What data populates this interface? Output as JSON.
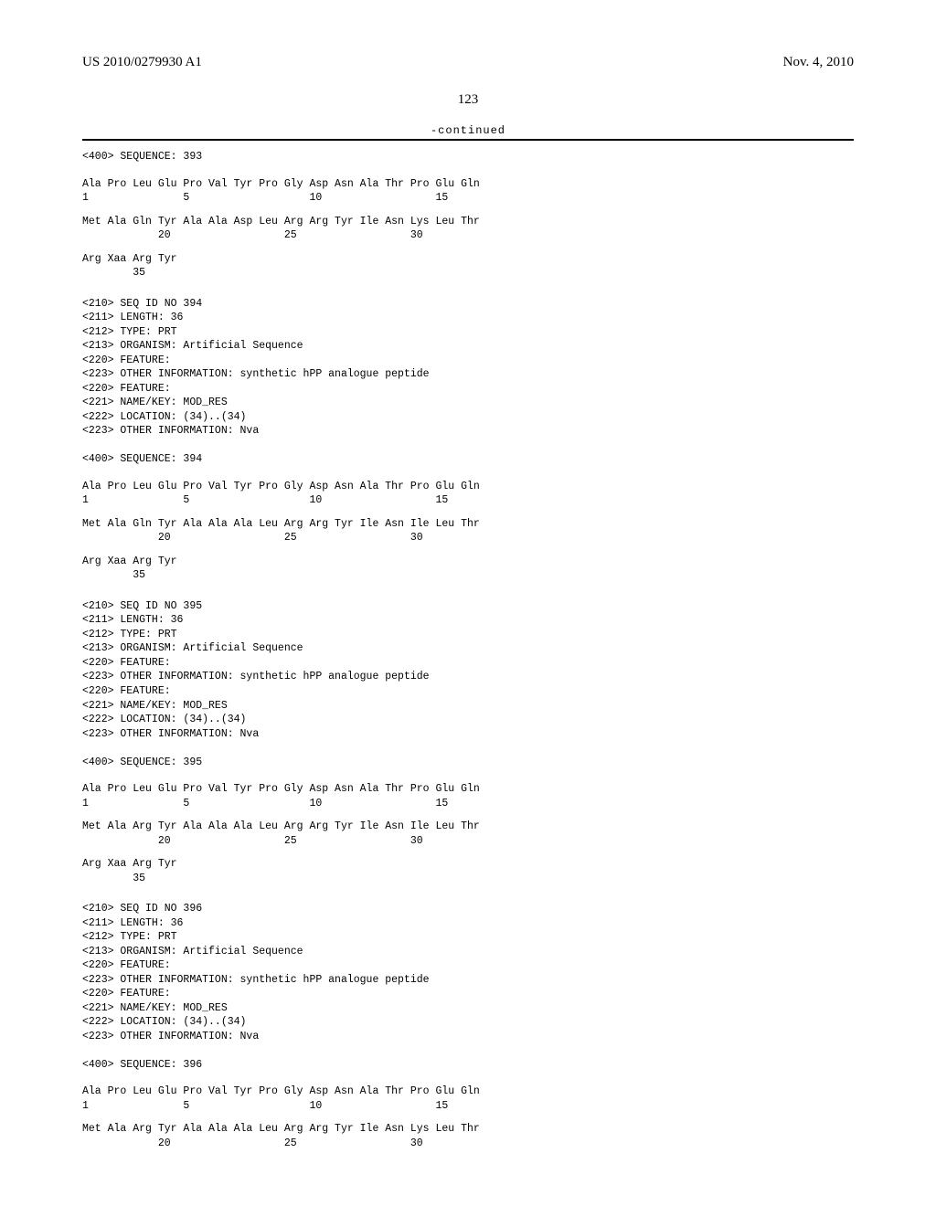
{
  "header": {
    "pub_number": "US 2010/0279930 A1",
    "date": "Nov. 4, 2010"
  },
  "page_number": "123",
  "continued_label": "-continued",
  "entries": [
    {
      "pre_lines": [
        "<400> SEQUENCE: 393"
      ],
      "sequence_rows": [
        {
          "res": "Ala Pro Leu Glu Pro Val Tyr Pro Gly Asp Asn Ala Thr Pro Glu Gln",
          "num": "1               5                   10                  15"
        },
        {
          "res": "Met Ala Gln Tyr Ala Ala Asp Leu Arg Arg Tyr Ile Asn Lys Leu Thr",
          "num": "            20                  25                  30"
        },
        {
          "res": "Arg Xaa Arg Tyr",
          "num": "        35"
        }
      ]
    },
    {
      "pre_lines": [
        "<210> SEQ ID NO 394",
        "<211> LENGTH: 36",
        "<212> TYPE: PRT",
        "<213> ORGANISM: Artificial Sequence",
        "<220> FEATURE:",
        "<223> OTHER INFORMATION: synthetic hPP analogue peptide",
        "<220> FEATURE:",
        "<221> NAME/KEY: MOD_RES",
        "<222> LOCATION: (34)..(34)",
        "<223> OTHER INFORMATION: Nva",
        "",
        "<400> SEQUENCE: 394"
      ],
      "sequence_rows": [
        {
          "res": "Ala Pro Leu Glu Pro Val Tyr Pro Gly Asp Asn Ala Thr Pro Glu Gln",
          "num": "1               5                   10                  15"
        },
        {
          "res": "Met Ala Gln Tyr Ala Ala Ala Leu Arg Arg Tyr Ile Asn Ile Leu Thr",
          "num": "            20                  25                  30"
        },
        {
          "res": "Arg Xaa Arg Tyr",
          "num": "        35"
        }
      ]
    },
    {
      "pre_lines": [
        "<210> SEQ ID NO 395",
        "<211> LENGTH: 36",
        "<212> TYPE: PRT",
        "<213> ORGANISM: Artificial Sequence",
        "<220> FEATURE:",
        "<223> OTHER INFORMATION: synthetic hPP analogue peptide",
        "<220> FEATURE:",
        "<221> NAME/KEY: MOD_RES",
        "<222> LOCATION: (34)..(34)",
        "<223> OTHER INFORMATION: Nva",
        "",
        "<400> SEQUENCE: 395"
      ],
      "sequence_rows": [
        {
          "res": "Ala Pro Leu Glu Pro Val Tyr Pro Gly Asp Asn Ala Thr Pro Glu Gln",
          "num": "1               5                   10                  15"
        },
        {
          "res": "Met Ala Arg Tyr Ala Ala Ala Leu Arg Arg Tyr Ile Asn Ile Leu Thr",
          "num": "            20                  25                  30"
        },
        {
          "res": "Arg Xaa Arg Tyr",
          "num": "        35"
        }
      ]
    },
    {
      "pre_lines": [
        "<210> SEQ ID NO 396",
        "<211> LENGTH: 36",
        "<212> TYPE: PRT",
        "<213> ORGANISM: Artificial Sequence",
        "<220> FEATURE:",
        "<223> OTHER INFORMATION: synthetic hPP analogue peptide",
        "<220> FEATURE:",
        "<221> NAME/KEY: MOD_RES",
        "<222> LOCATION: (34)..(34)",
        "<223> OTHER INFORMATION: Nva",
        "",
        "<400> SEQUENCE: 396"
      ],
      "sequence_rows": [
        {
          "res": "Ala Pro Leu Glu Pro Val Tyr Pro Gly Asp Asn Ala Thr Pro Glu Gln",
          "num": "1               5                   10                  15"
        },
        {
          "res": "Met Ala Arg Tyr Ala Ala Ala Leu Arg Arg Tyr Ile Asn Lys Leu Thr",
          "num": "            20                  25                  30"
        }
      ]
    }
  ]
}
